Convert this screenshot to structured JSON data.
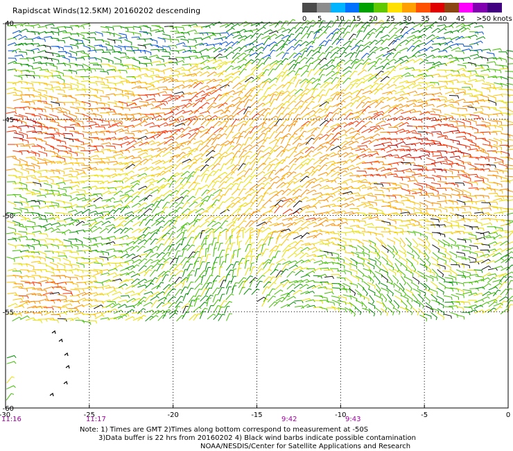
{
  "title": "Rapidscat Winds(12.5KM) 20160202 descending",
  "scale": {
    "labels": [
      "0",
      "5",
      "10",
      "15",
      "20",
      "25",
      "30",
      "35",
      "40",
      "45",
      ">50 knots"
    ],
    "colors": [
      "#4a4a4a",
      "#8c8c8c",
      "#00b4ff",
      "#0070ff",
      "#00a000",
      "#60c800",
      "#ffe000",
      "#ffa000",
      "#ff5000",
      "#e00000",
      "#8b4513",
      "#ff00ff",
      "#8000b0",
      "#400080"
    ]
  },
  "map": {
    "lon_range": [
      -30,
      0
    ],
    "lat_range": [
      -60,
      -40
    ],
    "lon_ticks": [
      "-30",
      "-25",
      "-20",
      "-15",
      "-10",
      "-5",
      "0"
    ],
    "lat_ticks": [
      "-40",
      "-45",
      "-50",
      "-55",
      "-60"
    ],
    "times": [
      {
        "label": "11:16",
        "color": "#a000a0"
      },
      {
        "label": "11:17",
        "color": "#a000a0"
      },
      {
        "label": "9:42",
        "color": "#a000a0"
      },
      {
        "label": "9:43",
        "color": "#a000a0"
      }
    ],
    "grid": true
  },
  "footer": {
    "line1": "Note: 1) Times are GMT 2)Times along bottom correspond to measurement at -50S",
    "line2": "3)Data buffer is 22 hrs from 20160202 4) Black wind barbs indicate possible contamination",
    "line3": "NOAA/NESDIS/Center for Satellite Applications and Research"
  }
}
